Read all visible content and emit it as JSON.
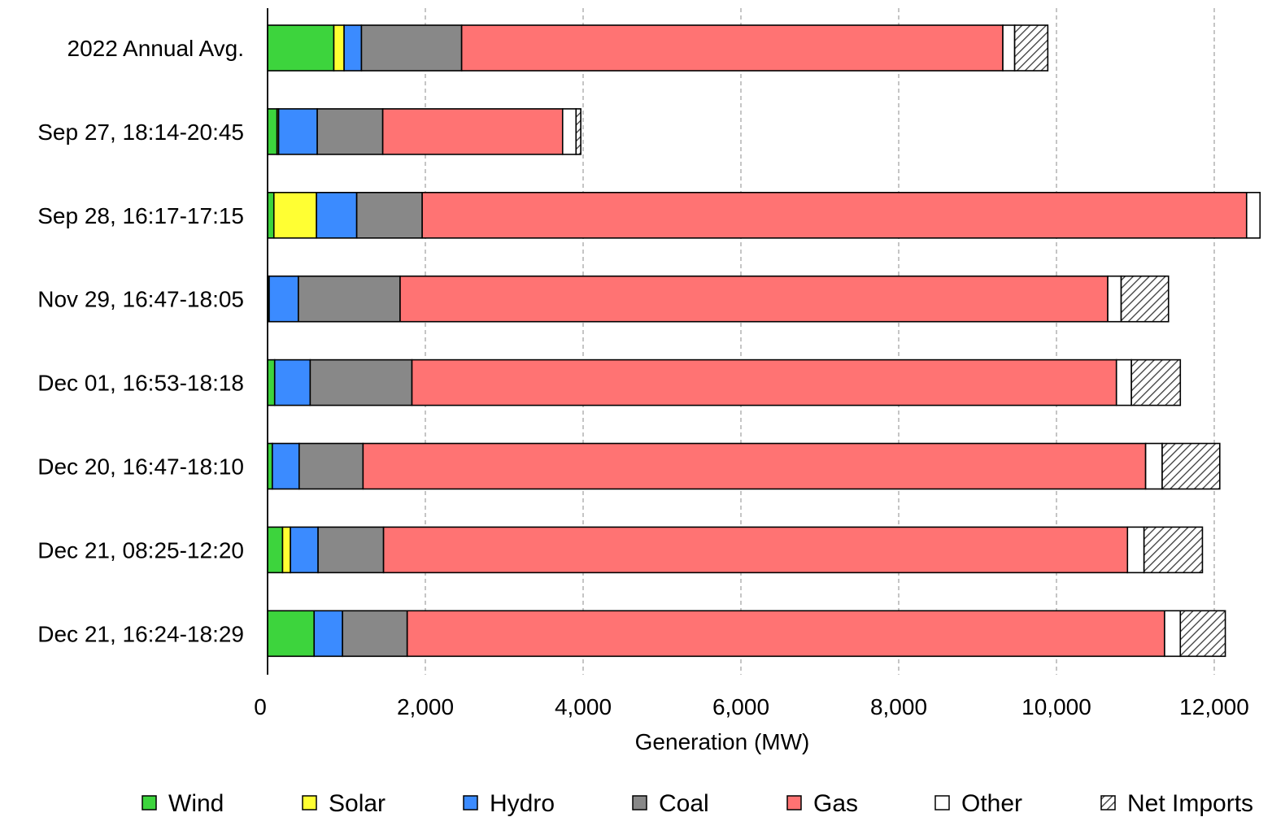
{
  "chart_data": {
    "type": "bar",
    "orientation": "horizontal",
    "stacked": true,
    "title": "",
    "xlabel": "Generation (MW)",
    "ylabel": "",
    "xlim": [
      0,
      12000
    ],
    "x_ticks": [
      0,
      2000,
      4000,
      6000,
      8000,
      10000,
      12000
    ],
    "x_tick_labels": [
      "0",
      "2,000",
      "4,000",
      "6,000",
      "8,000",
      "10,000",
      "12,000"
    ],
    "grid": "vertical dashed",
    "legend_position": "bottom",
    "categories": [
      "2022 Annual Avg.",
      "Sep 27, 18:14-20:45",
      "Sep 28, 16:17-17:15",
      "Nov 29, 16:47-18:05",
      "Dec 01, 16:53-18:18",
      "Dec 20, 16:47-18:10",
      "Dec 21, 08:25-12:20",
      "Dec 21, 16:24-18:29"
    ],
    "series": [
      {
        "name": "Wind",
        "color": "#3dd43d",
        "pattern": "solid",
        "values": [
          840,
          120,
          80,
          20,
          90,
          60,
          190,
          590
        ]
      },
      {
        "name": "Solar",
        "color": "#ffff33",
        "pattern": "solid",
        "values": [
          130,
          20,
          540,
          0,
          0,
          0,
          100,
          0
        ]
      },
      {
        "name": "Hydro",
        "color": "#3b8bff",
        "pattern": "solid",
        "values": [
          220,
          490,
          510,
          370,
          450,
          340,
          350,
          360
        ]
      },
      {
        "name": "Coal",
        "color": "#888888",
        "pattern": "solid",
        "values": [
          1270,
          830,
          830,
          1290,
          1290,
          810,
          830,
          820
        ]
      },
      {
        "name": "Gas",
        "color": "#ff7373",
        "pattern": "solid",
        "values": [
          6860,
          2280,
          10450,
          8970,
          8930,
          9920,
          9430,
          9600
        ]
      },
      {
        "name": "Other",
        "color": "#ffffff",
        "pattern": "solid",
        "values": [
          150,
          170,
          170,
          170,
          190,
          210,
          210,
          200
        ]
      },
      {
        "name": "Net Imports",
        "color": "#ffffff",
        "pattern": "hatch",
        "values": [
          420,
          60,
          0,
          600,
          620,
          730,
          740,
          570
        ]
      }
    ]
  }
}
